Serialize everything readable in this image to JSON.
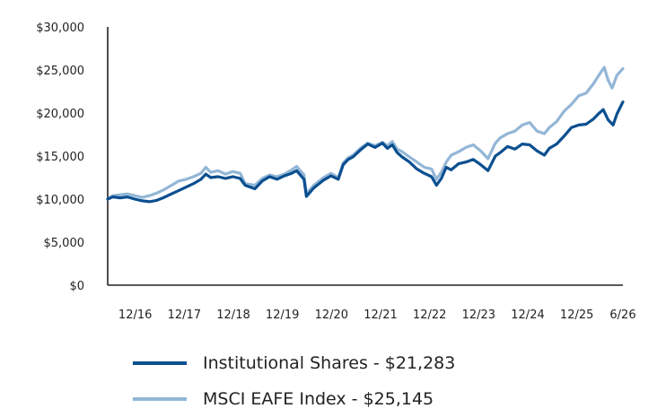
{
  "chart_data": {
    "type": "line",
    "y_ticks": [
      "$0",
      "$5,000",
      "$10,000",
      "$15,000",
      "$20,000",
      "$25,000",
      "$30,000"
    ],
    "ylim": [
      0,
      30000
    ],
    "x_ticks": [
      "12/16",
      "12/17",
      "12/18",
      "12/19",
      "12/20",
      "12/21",
      "12/22",
      "12/23",
      "12/24",
      "12/25",
      "6/26"
    ],
    "xlim": [
      2016.0,
      2026.5
    ],
    "grid": false,
    "legend_position": "bottom",
    "series": [
      {
        "name": "Institutional Shares - $21,283",
        "color": "#0b4f90",
        "points": [
          [
            2016.0,
            10000
          ],
          [
            2016.1,
            10250
          ],
          [
            2016.25,
            10150
          ],
          [
            2016.4,
            10250
          ],
          [
            2016.55,
            10000
          ],
          [
            2016.7,
            9800
          ],
          [
            2016.85,
            9700
          ],
          [
            2017.0,
            9850
          ],
          [
            2017.15,
            10200
          ],
          [
            2017.3,
            10600
          ],
          [
            2017.45,
            11000
          ],
          [
            2017.6,
            11400
          ],
          [
            2017.75,
            11800
          ],
          [
            2017.9,
            12300
          ],
          [
            2018.0,
            12900
          ],
          [
            2018.1,
            12500
          ],
          [
            2018.25,
            12600
          ],
          [
            2018.4,
            12400
          ],
          [
            2018.55,
            12600
          ],
          [
            2018.7,
            12400
          ],
          [
            2018.8,
            11600
          ],
          [
            2019.0,
            11200
          ],
          [
            2019.15,
            12100
          ],
          [
            2019.3,
            12600
          ],
          [
            2019.45,
            12300
          ],
          [
            2019.6,
            12700
          ],
          [
            2019.75,
            13000
          ],
          [
            2019.85,
            13300
          ],
          [
            2020.0,
            12300
          ],
          [
            2020.05,
            10300
          ],
          [
            2020.2,
            11300
          ],
          [
            2020.4,
            12200
          ],
          [
            2020.55,
            12700
          ],
          [
            2020.7,
            12300
          ],
          [
            2020.8,
            14000
          ],
          [
            2020.9,
            14600
          ],
          [
            2021.0,
            14900
          ],
          [
            2021.15,
            15700
          ],
          [
            2021.3,
            16400
          ],
          [
            2021.45,
            16000
          ],
          [
            2021.6,
            16500
          ],
          [
            2021.7,
            15900
          ],
          [
            2021.8,
            16300
          ],
          [
            2021.9,
            15400
          ],
          [
            2022.0,
            14900
          ],
          [
            2022.15,
            14300
          ],
          [
            2022.3,
            13500
          ],
          [
            2022.45,
            13000
          ],
          [
            2022.6,
            12600
          ],
          [
            2022.7,
            11600
          ],
          [
            2022.8,
            12400
          ],
          [
            2022.9,
            13700
          ],
          [
            2023.0,
            13400
          ],
          [
            2023.15,
            14100
          ],
          [
            2023.3,
            14300
          ],
          [
            2023.45,
            14600
          ],
          [
            2023.6,
            14000
          ],
          [
            2023.75,
            13300
          ],
          [
            2023.9,
            15000
          ],
          [
            2024.0,
            15400
          ],
          [
            2024.15,
            16100
          ],
          [
            2024.3,
            15800
          ],
          [
            2024.45,
            16400
          ],
          [
            2024.6,
            16300
          ],
          [
            2024.75,
            15600
          ],
          [
            2024.9,
            15100
          ],
          [
            2025.0,
            15900
          ],
          [
            2025.15,
            16400
          ],
          [
            2025.3,
            17300
          ],
          [
            2025.45,
            18300
          ],
          [
            2025.6,
            18600
          ],
          [
            2025.75,
            18700
          ],
          [
            2025.9,
            19300
          ],
          [
            2026.0,
            19900
          ],
          [
            2026.1,
            20400
          ],
          [
            2026.2,
            19200
          ],
          [
            2026.3,
            18600
          ],
          [
            2026.38,
            19900
          ],
          [
            2026.5,
            21283
          ]
        ]
      },
      {
        "name": "MSCI EAFE Index - $25,145",
        "color": "#93b6d6",
        "points": [
          [
            2016.0,
            10000
          ],
          [
            2016.1,
            10400
          ],
          [
            2016.25,
            10500
          ],
          [
            2016.4,
            10600
          ],
          [
            2016.55,
            10400
          ],
          [
            2016.7,
            10200
          ],
          [
            2016.85,
            10400
          ],
          [
            2017.0,
            10700
          ],
          [
            2017.15,
            11100
          ],
          [
            2017.3,
            11600
          ],
          [
            2017.45,
            12100
          ],
          [
            2017.6,
            12300
          ],
          [
            2017.75,
            12600
          ],
          [
            2017.9,
            13000
          ],
          [
            2018.0,
            13700
          ],
          [
            2018.1,
            13100
          ],
          [
            2018.25,
            13300
          ],
          [
            2018.4,
            12900
          ],
          [
            2018.55,
            13200
          ],
          [
            2018.7,
            13000
          ],
          [
            2018.8,
            11800
          ],
          [
            2019.0,
            11600
          ],
          [
            2019.15,
            12400
          ],
          [
            2019.3,
            12800
          ],
          [
            2019.45,
            12600
          ],
          [
            2019.6,
            12900
          ],
          [
            2019.75,
            13400
          ],
          [
            2019.85,
            13800
          ],
          [
            2020.0,
            12800
          ],
          [
            2020.05,
            10600
          ],
          [
            2020.2,
            11600
          ],
          [
            2020.4,
            12500
          ],
          [
            2020.55,
            13000
          ],
          [
            2020.7,
            12500
          ],
          [
            2020.8,
            14200
          ],
          [
            2020.9,
            14800
          ],
          [
            2021.0,
            15100
          ],
          [
            2021.15,
            15900
          ],
          [
            2021.3,
            16500
          ],
          [
            2021.45,
            16200
          ],
          [
            2021.6,
            16600
          ],
          [
            2021.7,
            16200
          ],
          [
            2021.8,
            16700
          ],
          [
            2021.9,
            15800
          ],
          [
            2022.0,
            15500
          ],
          [
            2022.15,
            14900
          ],
          [
            2022.3,
            14300
          ],
          [
            2022.45,
            13700
          ],
          [
            2022.6,
            13500
          ],
          [
            2022.7,
            12300
          ],
          [
            2022.8,
            13100
          ],
          [
            2022.9,
            14300
          ],
          [
            2023.0,
            15100
          ],
          [
            2023.15,
            15500
          ],
          [
            2023.3,
            16000
          ],
          [
            2023.45,
            16300
          ],
          [
            2023.6,
            15600
          ],
          [
            2023.75,
            14700
          ],
          [
            2023.9,
            16500
          ],
          [
            2024.0,
            17100
          ],
          [
            2024.15,
            17600
          ],
          [
            2024.3,
            17900
          ],
          [
            2024.45,
            18600
          ],
          [
            2024.6,
            18900
          ],
          [
            2024.75,
            17900
          ],
          [
            2024.9,
            17600
          ],
          [
            2025.0,
            18300
          ],
          [
            2025.15,
            19000
          ],
          [
            2025.3,
            20200
          ],
          [
            2025.45,
            21000
          ],
          [
            2025.6,
            22000
          ],
          [
            2025.75,
            22300
          ],
          [
            2025.9,
            23400
          ],
          [
            2026.0,
            24300
          ],
          [
            2026.12,
            25300
          ],
          [
            2026.2,
            23800
          ],
          [
            2026.28,
            22900
          ],
          [
            2026.38,
            24400
          ],
          [
            2026.5,
            25145
          ]
        ]
      }
    ]
  }
}
